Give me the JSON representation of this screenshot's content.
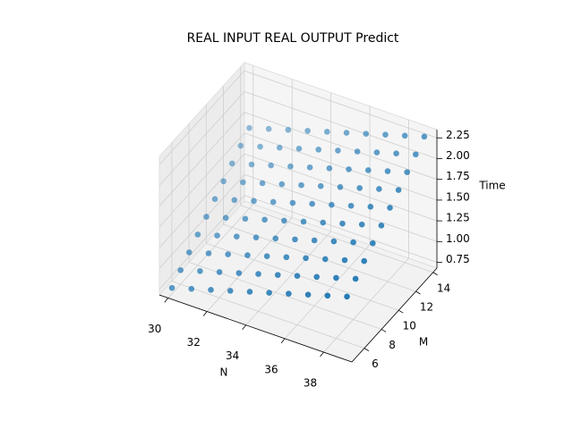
{
  "chart_data": {
    "type": "scatter3d",
    "title": "REAL INPUT REAL OUTPUT Predict",
    "xlabel": "N",
    "ylabel": "M",
    "zlabel": "Time",
    "color": "#1f77b4",
    "xlim": [
      29.55,
      39.45
    ],
    "ylim": [
      4.55,
      14.45
    ],
    "zlim": [
      0.68,
      2.35
    ],
    "xticks": [
      30,
      32,
      34,
      36,
      38
    ],
    "yticks": [
      6,
      8,
      10,
      12,
      14
    ],
    "zticks": [
      0.75,
      1.0,
      1.25,
      1.5,
      1.75,
      2.0,
      2.25
    ],
    "zticklabels": [
      "0.75",
      "1.00",
      "1.25",
      "1.50",
      "1.75",
      "2.00",
      "2.25"
    ],
    "x": [
      30,
      31,
      32,
      33,
      34,
      35,
      36,
      37,
      38,
      39,
      30,
      31,
      32,
      33,
      34,
      35,
      36,
      37,
      38,
      39,
      30,
      31,
      32,
      33,
      34,
      35,
      36,
      37,
      38,
      39,
      30,
      31,
      32,
      33,
      34,
      35,
      36,
      37,
      38,
      39,
      30,
      31,
      32,
      33,
      34,
      35,
      36,
      37,
      38,
      39,
      30,
      31,
      32,
      33,
      34,
      35,
      36,
      37,
      38,
      39,
      30,
      31,
      32,
      33,
      34,
      35,
      36,
      37,
      38,
      39,
      30,
      31,
      32,
      33,
      34,
      35,
      36,
      37,
      38,
      39,
      30,
      31,
      32,
      33,
      34,
      35,
      36,
      37,
      38,
      39,
      30,
      31,
      32,
      33,
      34,
      35,
      36,
      37,
      38,
      39
    ],
    "y": [
      5,
      5,
      5,
      5,
      5,
      5,
      5,
      5,
      5,
      5,
      6,
      6,
      6,
      6,
      6,
      6,
      6,
      6,
      6,
      6,
      7,
      7,
      7,
      7,
      7,
      7,
      7,
      7,
      7,
      7,
      8,
      8,
      8,
      8,
      8,
      8,
      8,
      8,
      8,
      8,
      9,
      9,
      9,
      9,
      9,
      9,
      9,
      9,
      9,
      9,
      10,
      10,
      10,
      10,
      10,
      10,
      10,
      10,
      10,
      10,
      11,
      11,
      11,
      11,
      11,
      11,
      11,
      11,
      11,
      11,
      12,
      12,
      12,
      12,
      12,
      12,
      12,
      12,
      12,
      12,
      13,
      13,
      13,
      13,
      13,
      13,
      13,
      13,
      13,
      13,
      14,
      14,
      14,
      14,
      14,
      14,
      14,
      14,
      14,
      14
    ],
    "z": [
      0.75,
      0.82,
      0.89,
      0.96,
      1.03,
      1.1,
      1.17,
      1.24,
      1.31,
      1.38,
      0.85,
      0.92,
      0.99,
      1.06,
      1.13,
      1.2,
      1.27,
      1.34,
      1.41,
      1.48,
      0.95,
      1.02,
      1.09,
      1.16,
      1.23,
      1.3,
      1.37,
      1.44,
      1.51,
      1.58,
      1.05,
      1.12,
      1.19,
      1.26,
      1.33,
      1.4,
      1.47,
      1.54,
      1.61,
      1.68,
      1.15,
      1.22,
      1.29,
      1.36,
      1.43,
      1.5,
      1.57,
      1.64,
      1.71,
      1.78,
      1.25,
      1.32,
      1.39,
      1.46,
      1.53,
      1.6,
      1.67,
      1.74,
      1.81,
      1.88,
      1.35,
      1.42,
      1.49,
      1.56,
      1.63,
      1.7,
      1.77,
      1.84,
      1.91,
      1.98,
      1.45,
      1.52,
      1.59,
      1.66,
      1.73,
      1.8,
      1.87,
      1.94,
      2.01,
      2.08,
      1.55,
      1.62,
      1.69,
      1.76,
      1.83,
      1.9,
      1.97,
      2.04,
      2.11,
      2.18,
      1.65,
      1.72,
      1.79,
      1.86,
      1.93,
      2.0,
      2.07,
      2.14,
      2.21,
      2.28
    ]
  }
}
